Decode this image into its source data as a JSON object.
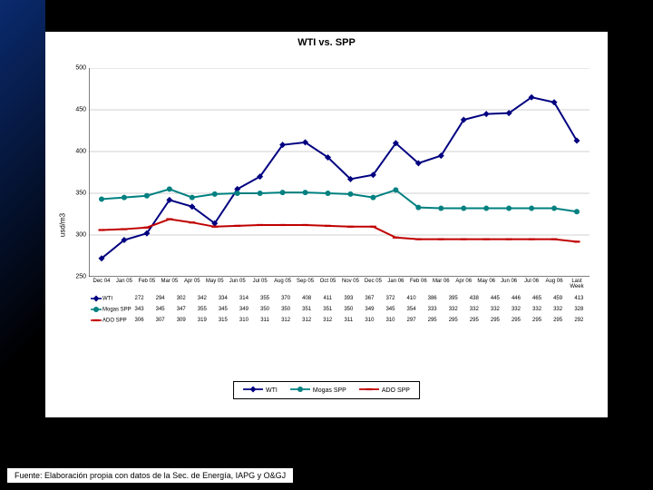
{
  "title": "WTI vs. SPP",
  "ylabel": "usd/m3",
  "footer": "Fuente: Elaboración propia con datos de la Sec. de Energía, IAPG y O&GJ",
  "chart": {
    "type": "line",
    "background_color": "#ffffff",
    "grid_color": "#c0c0c0",
    "axis_color": "#000000",
    "ylim": [
      250,
      500
    ],
    "ytick_step": 50,
    "yticks": [
      250,
      300,
      350,
      400,
      450,
      500
    ],
    "categories": [
      "Dec 04",
      "Jan 05",
      "Feb 05",
      "Mar 05",
      "Apr 05",
      "May 05",
      "Jun 05",
      "Jul 05",
      "Aug 05",
      "Sep 05",
      "Oct 05",
      "Nov 05",
      "Dec 05",
      "Jan 06",
      "Feb 06",
      "Mar 06",
      "Apr 06",
      "May 06",
      "Jun 06",
      "Jul 06",
      "Aug 06",
      "Last Week"
    ],
    "last_week_label": "Last Week",
    "series": [
      {
        "name": "WTI",
        "color": "#000080",
        "marker": "diamond",
        "line_width": 2,
        "values": [
          272,
          294,
          302,
          342,
          334,
          314,
          355,
          370,
          408,
          411,
          393,
          367,
          372,
          410,
          386,
          395,
          438,
          445,
          446,
          465,
          459,
          413
        ]
      },
      {
        "name": "Mogas SPP",
        "color": "#008080",
        "marker": "circle",
        "line_width": 2,
        "values": [
          343,
          345,
          347,
          355,
          345,
          349,
          350,
          350,
          351,
          351,
          350,
          349,
          345,
          354,
          333,
          332,
          332,
          332,
          332,
          332,
          332,
          328
        ]
      },
      {
        "name": "ADO SPP",
        "color": "#c00000",
        "marker": "dash",
        "line_width": 2,
        "values": [
          306,
          307,
          309,
          319,
          315,
          310,
          311,
          312,
          312,
          312,
          311,
          310,
          310,
          297,
          295,
          295,
          295,
          295,
          295,
          295,
          295,
          292
        ]
      }
    ],
    "legend": {
      "items": [
        "WTI",
        "Mogas SPP",
        "ADO SPP"
      ]
    },
    "title_fontsize": 11,
    "tick_fontsize": 7
  }
}
